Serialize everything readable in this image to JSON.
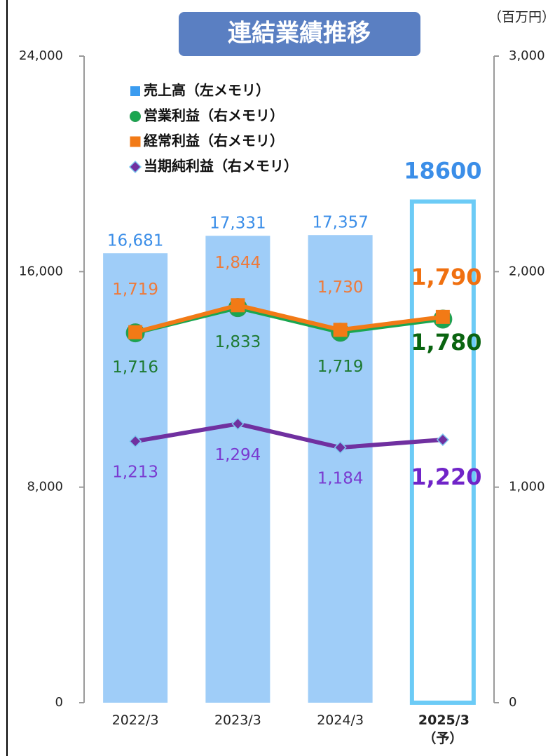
{
  "chart_data": {
    "type": "bar-line",
    "title": "連結業績推移",
    "unit": "（百万円）",
    "categories": [
      "2022/3",
      "2023/3",
      "2024/3",
      "2025/3（予）"
    ],
    "ylim": [
      0,
      24000
    ],
    "yticks": [
      0,
      {
        "value": 8000,
        "label": "8,000"
      },
      {
        "value": 16000,
        "label": "16,000"
      },
      {
        "value": 24000,
        "label": "24,000"
      }
    ],
    "y2lim": [
      0,
      3000
    ],
    "y2ticks": [
      0,
      {
        "value": 1000,
        "label": "1,000"
      },
      {
        "value": 2000,
        "label": "2,000"
      },
      {
        "value": 3000,
        "label": "3,000"
      }
    ],
    "series": [
      {
        "name": "売上高（左メモリ）",
        "type": "bar",
        "color": "#9fcdf8",
        "label_color": "#3b8ee8",
        "marker": "square",
        "values": [
          16681,
          17331,
          17357,
          18600
        ],
        "value_labels": [
          "16,681",
          "17,331",
          "17,357",
          "18600"
        ]
      },
      {
        "name": "営業利益（右メモリ）",
        "type": "line",
        "axis": "y2",
        "color": "#1aa64f",
        "label_color": "#1e7a32",
        "marker": "circle",
        "values": [
          1716,
          1833,
          1719,
          1780
        ],
        "value_labels": [
          "1,716",
          "1,833",
          "1,719",
          "1,780"
        ]
      },
      {
        "name": "経常利益（右メモリ）",
        "type": "line",
        "axis": "y2",
        "color": "#f27a16",
        "label_color": "#ee7a3a",
        "marker": "square",
        "values": [
          1719,
          1844,
          1730,
          1790
        ],
        "value_labels": [
          "1,719",
          "1,844",
          "1,730",
          "1,790"
        ]
      },
      {
        "name": "当期純利益（右メモリ）",
        "type": "line",
        "axis": "y2",
        "color": "#7030a0",
        "label_color": "#7a3ad0",
        "marker": "diamond",
        "values": [
          1213,
          1294,
          1184,
          1220
        ],
        "value_labels": [
          "1,213",
          "1,294",
          "1,184",
          "1,220"
        ]
      }
    ]
  }
}
